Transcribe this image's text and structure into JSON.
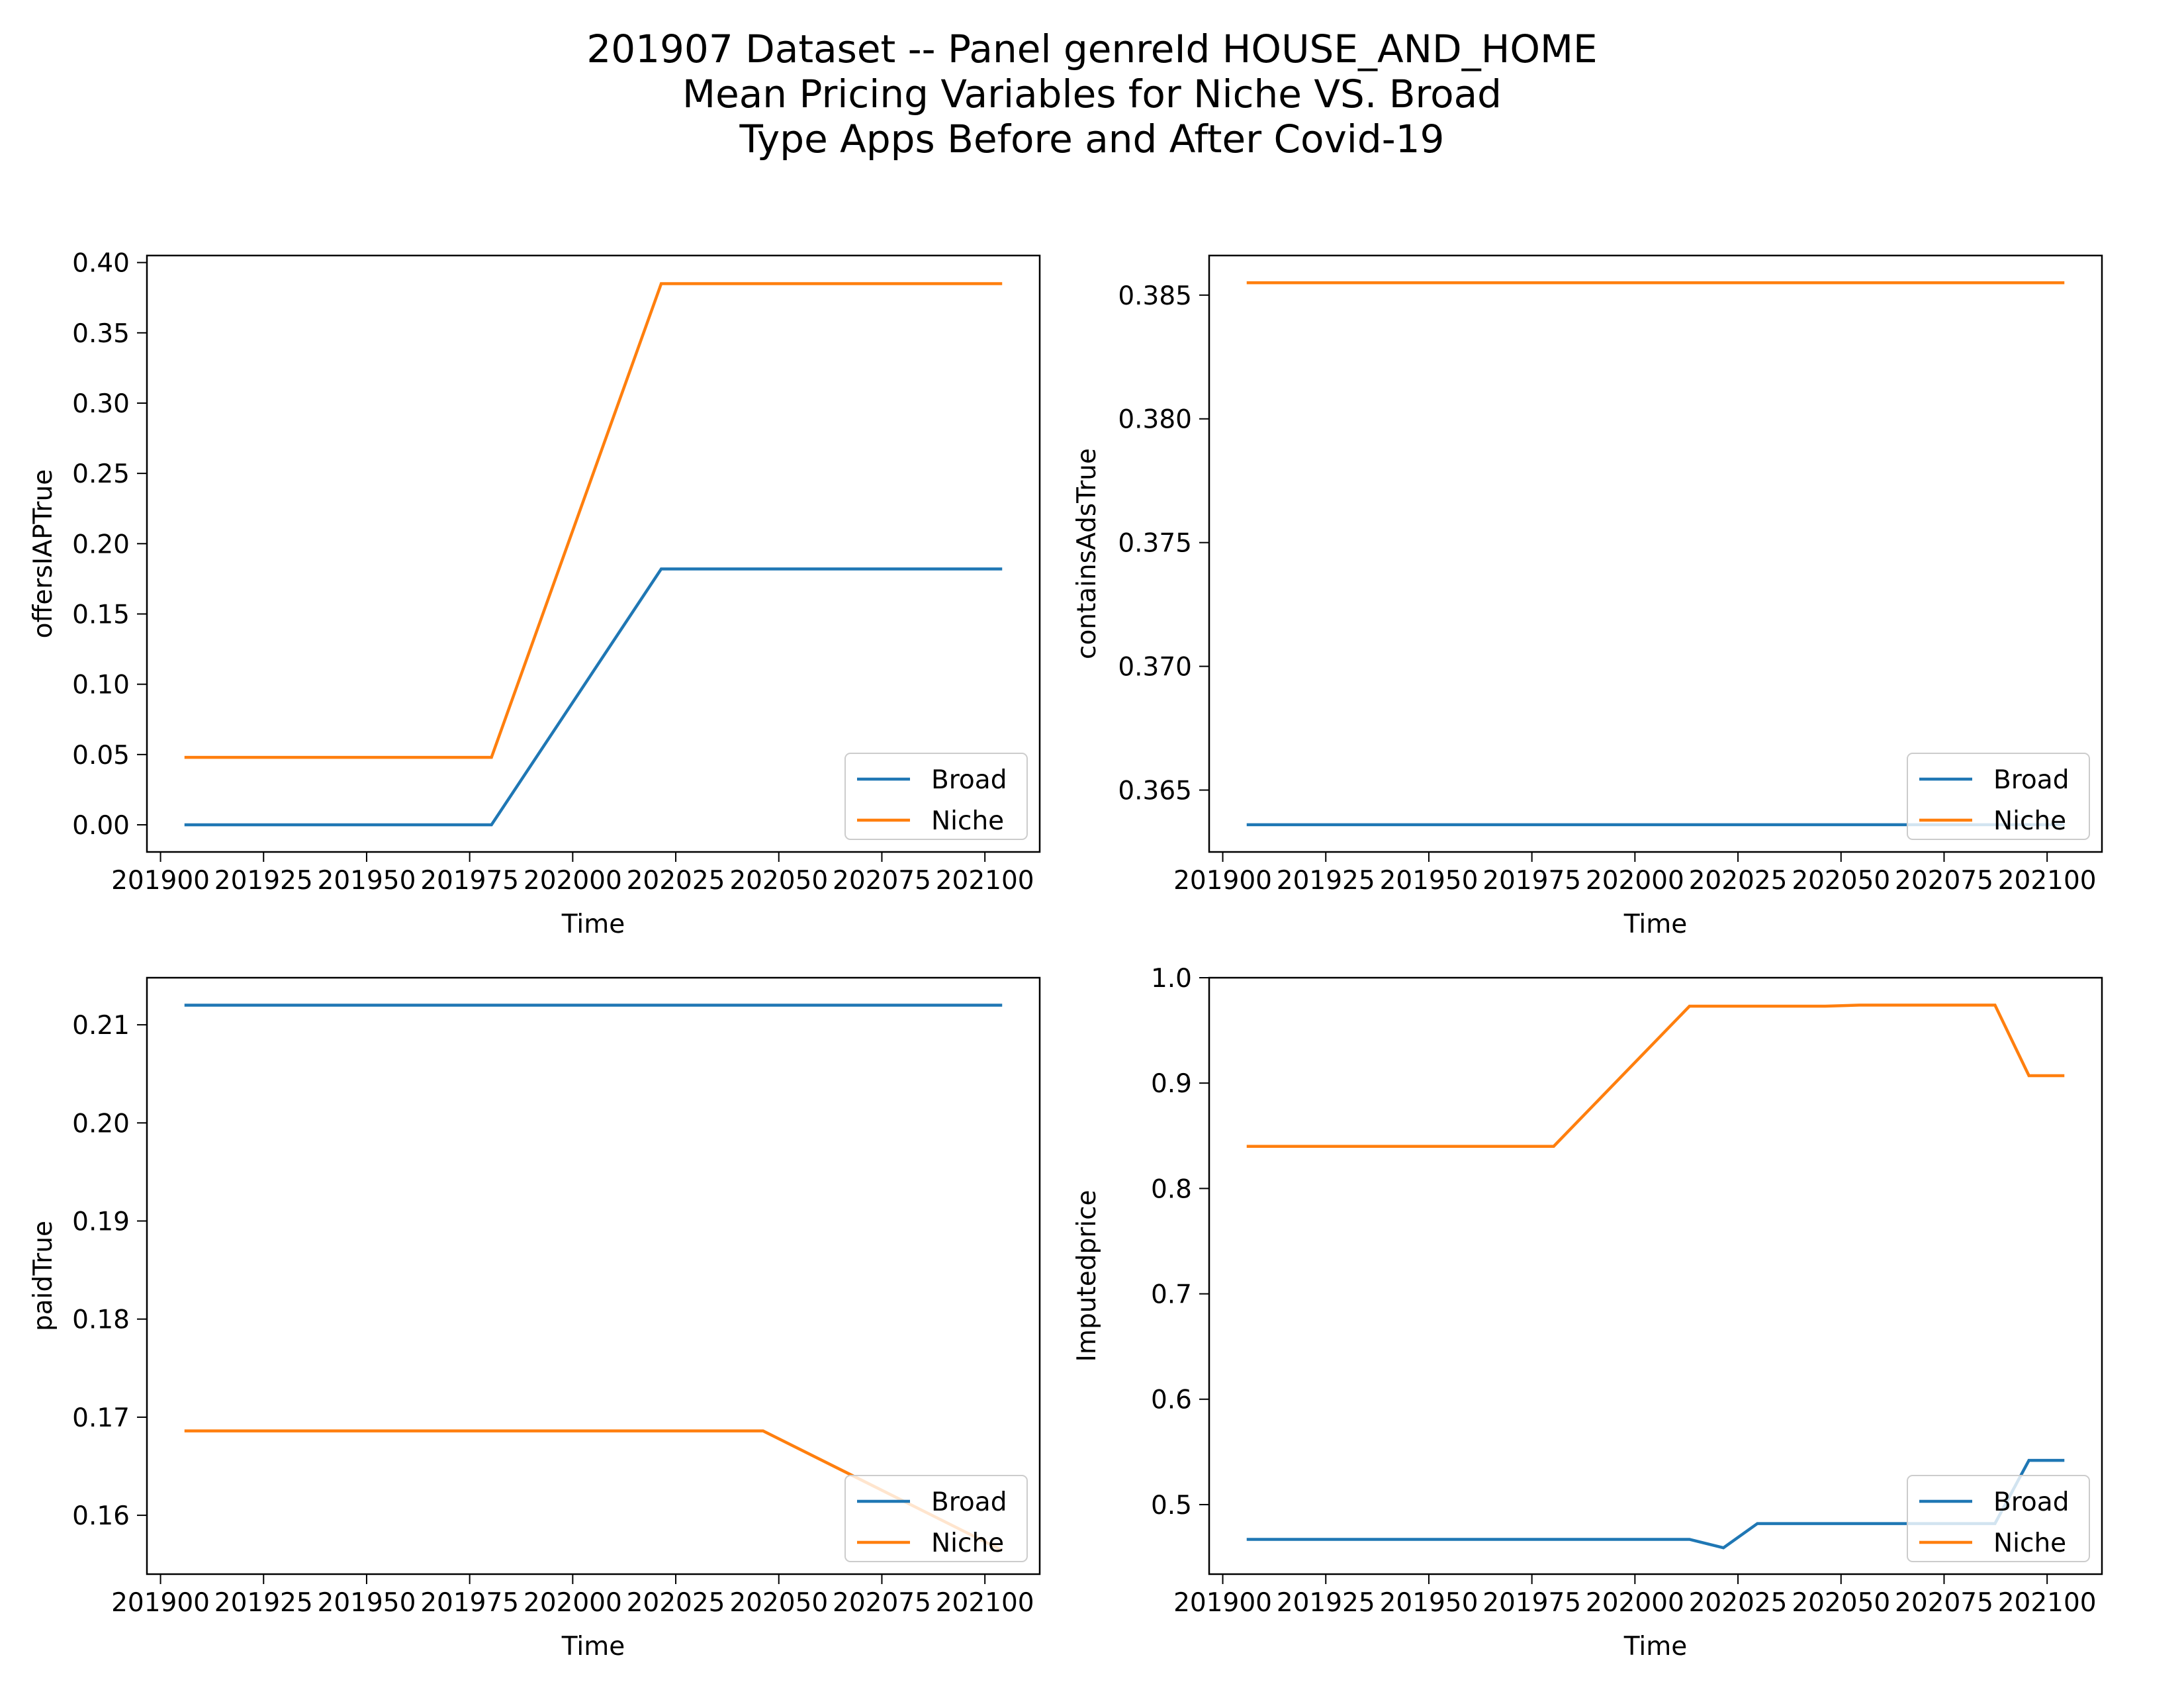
{
  "title_lines": [
    "201907 Dataset -- Panel genreId HOUSE_AND_HOME",
    "Mean Pricing Variables for Niche VS. Broad",
    "Type Apps Before and After Covid-19"
  ],
  "colors": {
    "Broad": "#1f77b4",
    "Niche": "#ff7f0e"
  },
  "chart_data": [
    {
      "type": "line",
      "xlabel": "Time",
      "ylabel": "offersIAPTrue",
      "xlim": [
        201896.7,
        202113.3
      ],
      "ylim": [
        -0.0193,
        0.405
      ],
      "xticks": [
        201900,
        201925,
        201950,
        201975,
        202000,
        202025,
        202050,
        202075,
        202100
      ],
      "yticks": [
        0.0,
        0.05,
        0.1,
        0.15,
        0.2,
        0.25,
        0.3,
        0.35,
        0.4
      ],
      "ytick_labels": [
        "0.00",
        "0.05",
        "0.10",
        "0.15",
        "0.20",
        "0.25",
        "0.30",
        "0.35",
        "0.40"
      ],
      "legend": "lower-right",
      "series": [
        {
          "name": "Broad",
          "x": [
            201907,
            202004,
            202009,
            202107
          ],
          "y": [
            0.0,
            0.0,
            0.182,
            0.182
          ]
        },
        {
          "name": "Niche",
          "x": [
            201907,
            202004,
            202009,
            202107
          ],
          "y": [
            0.048,
            0.048,
            0.385,
            0.385
          ]
        }
      ]
    },
    {
      "type": "line",
      "xlabel": "Time",
      "ylabel": "containsAdsTrue",
      "xlim": [
        201896.7,
        202113.3
      ],
      "ylim": [
        0.3625,
        0.3866
      ],
      "xticks": [
        201900,
        201925,
        201950,
        201975,
        202000,
        202025,
        202050,
        202075,
        202100
      ],
      "yticks": [
        0.365,
        0.37,
        0.375,
        0.38,
        0.385
      ],
      "ytick_labels": [
        "0.365",
        "0.370",
        "0.375",
        "0.380",
        "0.385"
      ],
      "legend": "lower-right",
      "series": [
        {
          "name": "Broad",
          "x": [
            201907,
            202107
          ],
          "y": [
            0.3636,
            0.3636
          ]
        },
        {
          "name": "Niche",
          "x": [
            201907,
            202107
          ],
          "y": [
            0.3855,
            0.3855
          ]
        }
      ]
    },
    {
      "type": "line",
      "xlabel": "Time",
      "ylabel": "paidTrue",
      "xlim": [
        201896.7,
        202113.3
      ],
      "ylim": [
        0.154,
        0.2148
      ],
      "xticks": [
        201900,
        201925,
        201950,
        201975,
        202000,
        202025,
        202050,
        202075,
        202100
      ],
      "yticks": [
        0.16,
        0.17,
        0.18,
        0.19,
        0.2,
        0.21
      ],
      "ytick_labels": [
        "0.16",
        "0.17",
        "0.18",
        "0.19",
        "0.20",
        "0.21"
      ],
      "legend": "lower-right",
      "series": [
        {
          "name": "Broad",
          "x": [
            201907,
            202107
          ],
          "y": [
            0.212,
            0.212
          ]
        },
        {
          "name": "Niche",
          "x": [
            201907,
            202012,
            202107
          ],
          "y": [
            0.1686,
            0.1686,
            0.1565
          ]
        }
      ]
    },
    {
      "type": "line",
      "xlabel": "Time",
      "ylabel": "Imputedprice",
      "xlim": [
        201896.7,
        202113.3
      ],
      "ylim": [
        0.434,
        1.0
      ],
      "xticks": [
        201900,
        201925,
        201950,
        201975,
        202000,
        202025,
        202050,
        202075,
        202100
      ],
      "yticks": [
        0.5,
        0.6,
        0.7,
        0.8,
        0.9,
        1.0
      ],
      "ytick_labels": [
        "0.5",
        "0.6",
        "0.7",
        "0.8",
        "0.9",
        "1.0"
      ],
      "legend": "lower-right",
      "series": [
        {
          "name": "Broad",
          "x": [
            201907,
            202004,
            202008,
            202009,
            202010,
            202011,
            202012,
            202101,
            202102,
            202103,
            202104,
            202105,
            202106,
            202107
          ],
          "y": [
            0.467,
            0.467,
            0.467,
            0.459,
            0.482,
            0.482,
            0.482,
            0.482,
            0.482,
            0.482,
            0.482,
            0.482,
            0.542,
            0.542
          ]
        },
        {
          "name": "Niche",
          "x": [
            201907,
            202004,
            202008,
            202009,
            202010,
            202011,
            202012,
            202101,
            202102,
            202103,
            202104,
            202105,
            202106,
            202107
          ],
          "y": [
            0.84,
            0.84,
            0.973,
            0.973,
            0.973,
            0.973,
            0.973,
            0.974,
            0.974,
            0.974,
            0.974,
            0.974,
            0.907,
            0.907
          ]
        }
      ]
    }
  ]
}
